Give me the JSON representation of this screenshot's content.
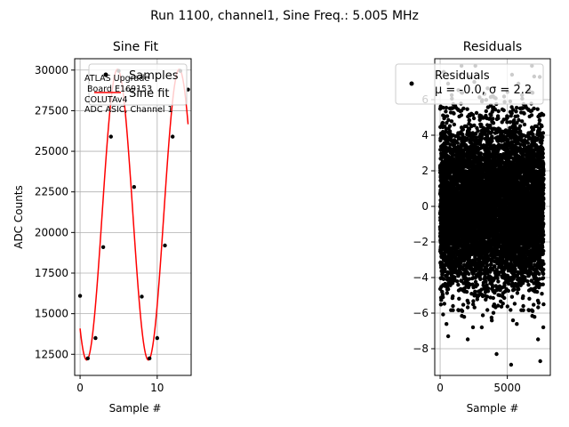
{
  "figure_title": "Run 1100, channel1, Sine Freq.: 5.005 MHz",
  "colors": {
    "samples": "#000000",
    "fit": "#ff0000",
    "residuals": "#000000",
    "grid": "#b0b0b0"
  },
  "chart_data": [
    {
      "type": "line",
      "title": "Sine Fit",
      "xlabel": "Sample #",
      "ylabel": "ADC Counts",
      "xlim": [
        -0.7,
        14.4
      ],
      "ylim": [
        11200,
        30700
      ],
      "xticks": [
        0,
        10
      ],
      "yticks": [
        12500,
        15000,
        17500,
        20000,
        22500,
        25000,
        27500,
        30000
      ],
      "grid": true,
      "legend": {
        "location": "top-right",
        "entries": [
          "Samples",
          "Sine fit"
        ]
      },
      "annotation": [
        "ATLAS Upgrade",
        " Board E169153",
        "COLUTAv4",
        "ADC ASIC, Channel 1"
      ],
      "series": [
        {
          "name": "Samples",
          "kind": "scatter",
          "x": [
            0,
            1,
            2,
            3,
            4,
            5,
            6,
            7,
            8,
            9,
            10,
            11,
            12,
            13,
            14
          ],
          "y": [
            16100,
            12250,
            13500,
            19100,
            25900,
            29950,
            28800,
            22800,
            16050,
            12250,
            13500,
            19200,
            25900,
            29950,
            28800
          ]
        },
        {
          "name": "Sine fit",
          "kind": "line",
          "model": {
            "amplitude": 8950,
            "offset": 21100,
            "cycles_per_sample": 0.125,
            "phase_deg": 180,
            "x_range": [
              0,
              14
            ]
          }
        }
      ]
    },
    {
      "type": "scatter",
      "title": "Residuals",
      "xlabel": "Sample #",
      "ylabel": "",
      "xlim": [
        -400,
        8200
      ],
      "ylim": [
        -9.5,
        8.3
      ],
      "xticks": [
        0,
        5000
      ],
      "yticks": [
        -8,
        -6,
        -4,
        -2,
        0,
        2,
        4,
        6
      ],
      "grid": true,
      "legend": {
        "location": "top-right",
        "entries": [
          "Residuals\nμ = -0.0, σ = 2.2"
        ]
      },
      "series": [
        {
          "name": "Residuals\nμ = -0.0, σ = 2.2",
          "stats": {
            "n_points": 7700,
            "mean": -0.0,
            "std": 2.2,
            "x_range": [
              0,
              7700
            ]
          },
          "outliers": [
            {
              "x": 4200,
              "y": -8.3
            },
            {
              "x": 7450,
              "y": -8.7
            },
            {
              "x": 1500,
              "y": 7.4
            },
            {
              "x": 5350,
              "y": 7.4
            },
            {
              "x": 7000,
              "y": 7.3
            },
            {
              "x": 600,
              "y": -7.3
            },
            {
              "x": 3100,
              "y": -6.8
            }
          ]
        }
      ]
    }
  ]
}
